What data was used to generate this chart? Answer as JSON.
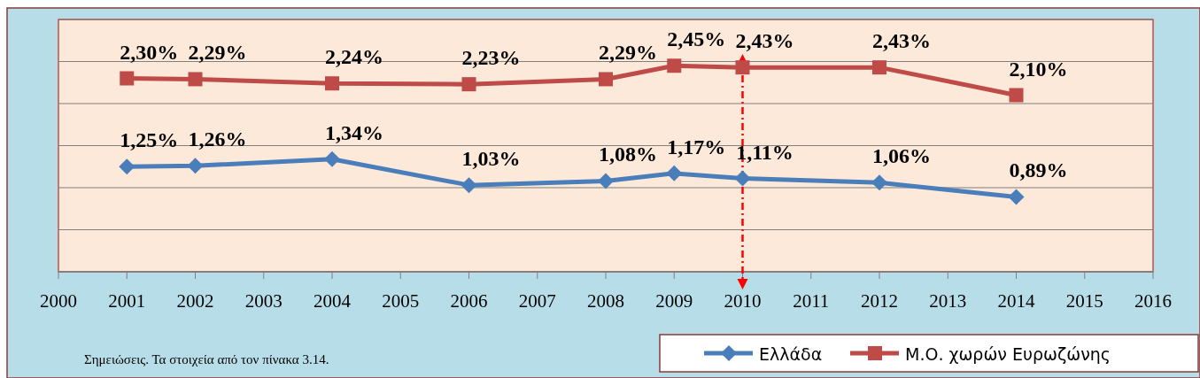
{
  "chart_data": {
    "type": "line",
    "xlim": [
      2000,
      2016
    ],
    "xticks": [
      2000,
      2001,
      2002,
      2003,
      2004,
      2005,
      2006,
      2007,
      2008,
      2009,
      2010,
      2011,
      2012,
      2013,
      2014,
      2015,
      2016
    ],
    "ylim": [
      0,
      3
    ],
    "yticks": [
      {
        "value": 0,
        "label": null
      },
      {
        "value": 0.5,
        "label": null
      },
      {
        "value": 1,
        "label": null
      },
      {
        "value": 1.5,
        "label": null
      },
      {
        "value": 2,
        "label": null
      },
      {
        "value": 2.5,
        "label": null
      },
      {
        "value": 3,
        "label": null
      }
    ],
    "tick_labels": "x",
    "grid": "y",
    "legend": "bottom right",
    "series": [
      {
        "name": "Ελλάδα",
        "color": "#4a7ebb",
        "marker": "diamond",
        "x": [
          2001,
          2002,
          2004,
          2006,
          2008,
          2009,
          2010,
          2012,
          2014
        ],
        "values": [
          1.25,
          1.26,
          1.34,
          1.03,
          1.08,
          1.17,
          1.11,
          1.06,
          0.89
        ],
        "value_labels": [
          "1,25%",
          "1,26%",
          "1,34%",
          "1,03%",
          "1,08%",
          "1,17%",
          "1,11%",
          "1,06%",
          "0,89%"
        ]
      },
      {
        "name": "Μ.Ο. χωρών Ευρωζώνης",
        "color": "#be4b48",
        "marker": "square",
        "x": [
          2001,
          2002,
          2004,
          2006,
          2008,
          2009,
          2010,
          2012,
          2014
        ],
        "values": [
          2.3,
          2.29,
          2.24,
          2.23,
          2.29,
          2.45,
          2.43,
          2.43,
          2.1
        ],
        "value_labels": [
          "2,30%",
          "2,29%",
          "2,24%",
          "2,23%",
          "2,29%",
          "2,45%",
          "2,43%",
          "2,43%",
          "2,10%"
        ]
      }
    ],
    "ref_lines": [
      {
        "axis": "x",
        "value": 2010,
        "color": "#ff0000",
        "line_style": "dashed"
      }
    ],
    "annotations": [
      "Σημειώσεις. Τα στοιχεία από τον πίνακα 3.14."
    ]
  }
}
